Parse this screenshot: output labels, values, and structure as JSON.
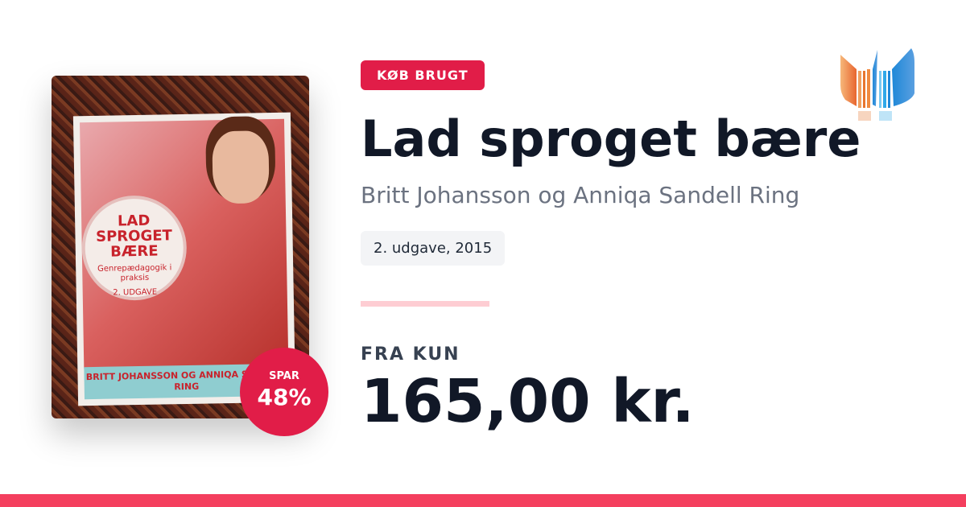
{
  "cover": {
    "title": "LAD SPROGET BÆRE",
    "subtitle": "Genrepædagogik i praksis",
    "edition_label": "2. UDGAVE",
    "authors": "BRITT JOHANSSON OG ANNIQA SANDELL RING"
  },
  "badge": {
    "label": "SPAR",
    "value": "48%"
  },
  "tag": "KØB BRUGT",
  "title": "Lad sproget bære",
  "author": "Britt Johansson og Anniqa Sandell Ring",
  "edition": "2. udgave, 2015",
  "price_label": "FRA KUN",
  "price": "165,00 kr.",
  "colors": {
    "accent": "#e11d48",
    "footer": "#f43f5e"
  }
}
